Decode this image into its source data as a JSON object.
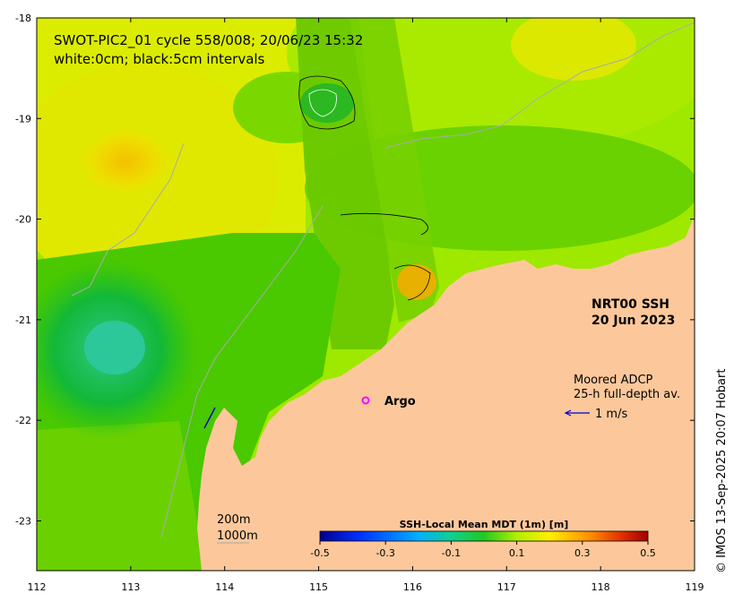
{
  "title_line1": "SWOT-PIC2_01 cycle 558/008; 20/06/23 15:32",
  "title_line2": "white:0cm; black:5cm intervals",
  "product": "NRT00 SSH",
  "product_date": "20 Jun 2023",
  "adcp_line1": "Moored ADCP",
  "adcp_line2": "25-h full-depth av.",
  "adcp_scale": "1 m/s",
  "argo_label": "Argo",
  "isobath_200": "200m",
  "isobath_1000": "1000m",
  "credit": "© IMOS 13-Sep-2025 20:07 Hobart",
  "x_ticks": [
    "112",
    "113",
    "114",
    "115",
    "116",
    "117",
    "118",
    "119"
  ],
  "y_ticks": [
    "-18",
    "-19",
    "-20",
    "-21",
    "-22",
    "-23"
  ],
  "colorbar": {
    "label": "SSH-Local Mean MDT (1m) [m]",
    "ticks": [
      "-0.5",
      "-0.3",
      "-0.1",
      "0.1",
      "0.3",
      "0.5"
    ],
    "range": [
      -0.5,
      0.5
    ]
  },
  "colors": {
    "land": "#fcc89b",
    "argo": "#ff00ff",
    "adcp_arrow": "#0000cc",
    "isobath": "#aaaaaa"
  }
}
